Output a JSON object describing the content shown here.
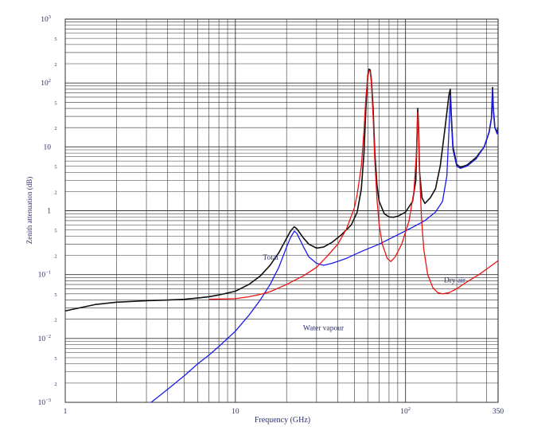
{
  "chart_data": {
    "type": "line",
    "xlabel": "Frequency (GHz)",
    "ylabel": "Zenith attenuation (dB)",
    "xscale": "log",
    "yscale": "log",
    "xlim": [
      1,
      350
    ],
    "ylim": [
      0.001,
      1000
    ],
    "grid": true,
    "x_ticks": [
      {
        "value": 1,
        "label": "1"
      },
      {
        "value": 10,
        "label": "10"
      },
      {
        "value": 100,
        "label": "10",
        "sup": "2"
      },
      {
        "value": 350,
        "label": "350"
      }
    ],
    "y_ticks": [
      {
        "value": 0.001,
        "label": "10",
        "sup": "−3"
      },
      {
        "value": 0.01,
        "label": "10",
        "sup": "−2"
      },
      {
        "value": 0.1,
        "label": "10",
        "sup": "−1"
      },
      {
        "value": 1,
        "label": "1"
      },
      {
        "value": 10,
        "label": "10"
      },
      {
        "value": 100,
        "label": "10",
        "sup": "2"
      },
      {
        "value": 1000,
        "label": "10",
        "sup": "3"
      }
    ],
    "y_minor_labels": [
      "2",
      "5"
    ],
    "series": [
      {
        "name": "Total",
        "color": "#111111",
        "points": [
          [
            1,
            0.027
          ],
          [
            1.5,
            0.034
          ],
          [
            2,
            0.037
          ],
          [
            3,
            0.039
          ],
          [
            4,
            0.04
          ],
          [
            5,
            0.041
          ],
          [
            6,
            0.043
          ],
          [
            7,
            0.045
          ],
          [
            8,
            0.048
          ],
          [
            10,
            0.055
          ],
          [
            12,
            0.07
          ],
          [
            14,
            0.095
          ],
          [
            16,
            0.14
          ],
          [
            18,
            0.22
          ],
          [
            20,
            0.37
          ],
          [
            21,
            0.47
          ],
          [
            22,
            0.55
          ],
          [
            22.2,
            0.56
          ],
          [
            23,
            0.52
          ],
          [
            25,
            0.38
          ],
          [
            27,
            0.3
          ],
          [
            30,
            0.26
          ],
          [
            33,
            0.27
          ],
          [
            37,
            0.32
          ],
          [
            42,
            0.42
          ],
          [
            48,
            0.6
          ],
          [
            52,
            0.95
          ],
          [
            55,
            2.2
          ],
          [
            57,
            8
          ],
          [
            58.5,
            40
          ],
          [
            60,
            130
          ],
          [
            61,
            165
          ],
          [
            62,
            160
          ],
          [
            63,
            110
          ],
          [
            64.5,
            40
          ],
          [
            66,
            8
          ],
          [
            68,
            2.5
          ],
          [
            70,
            1.4
          ],
          [
            75,
            0.9
          ],
          [
            80,
            0.8
          ],
          [
            85,
            0.79
          ],
          [
            90,
            0.82
          ],
          [
            100,
            0.95
          ],
          [
            110,
            1.4
          ],
          [
            115,
            3
          ],
          [
            118,
            40
          ],
          [
            119,
            25
          ],
          [
            121,
            4
          ],
          [
            125,
            1.6
          ],
          [
            130,
            1.3
          ],
          [
            140,
            1.6
          ],
          [
            150,
            2.2
          ],
          [
            160,
            5
          ],
          [
            170,
            18
          ],
          [
            180,
            65
          ],
          [
            183.3,
            80
          ],
          [
            186,
            30
          ],
          [
            190,
            10
          ],
          [
            200,
            5.3
          ],
          [
            210,
            4.8
          ],
          [
            230,
            5.2
          ],
          [
            260,
            6.8
          ],
          [
            290,
            10
          ],
          [
            310,
            17
          ],
          [
            320,
            28
          ],
          [
            325,
            85
          ],
          [
            328,
            40
          ],
          [
            335,
            20
          ],
          [
            345,
            17
          ],
          [
            350,
            20
          ]
        ]
      },
      {
        "name": "Water vapour",
        "color": "#1a1aee",
        "points": [
          [
            3.2,
            0.001
          ],
          [
            4,
            0.0016
          ],
          [
            5,
            0.0026
          ],
          [
            6,
            0.004
          ],
          [
            7,
            0.0055
          ],
          [
            8,
            0.0075
          ],
          [
            10,
            0.013
          ],
          [
            12,
            0.023
          ],
          [
            14,
            0.04
          ],
          [
            16,
            0.07
          ],
          [
            18,
            0.13
          ],
          [
            20,
            0.27
          ],
          [
            21,
            0.37
          ],
          [
            22.2,
            0.48
          ],
          [
            23,
            0.44
          ],
          [
            25,
            0.28
          ],
          [
            27,
            0.19
          ],
          [
            30,
            0.15
          ],
          [
            33,
            0.14
          ],
          [
            37,
            0.15
          ],
          [
            45,
            0.18
          ],
          [
            55,
            0.23
          ],
          [
            70,
            0.3
          ],
          [
            90,
            0.42
          ],
          [
            110,
            0.55
          ],
          [
            130,
            0.7
          ],
          [
            150,
            0.95
          ],
          [
            165,
            1.4
          ],
          [
            175,
            3.5
          ],
          [
            180,
            18
          ],
          [
            183.3,
            65
          ],
          [
            186,
            25
          ],
          [
            190,
            9
          ],
          [
            200,
            5
          ],
          [
            210,
            4.6
          ],
          [
            230,
            5
          ],
          [
            260,
            6.5
          ],
          [
            290,
            10
          ],
          [
            310,
            17
          ],
          [
            320,
            28
          ],
          [
            325,
            80
          ],
          [
            328,
            40
          ],
          [
            335,
            20
          ],
          [
            345,
            16
          ],
          [
            350,
            19
          ]
        ]
      },
      {
        "name": "Dry air",
        "color": "#ee1111",
        "points": [
          [
            7,
            0.041
          ],
          [
            10,
            0.042
          ],
          [
            12,
            0.045
          ],
          [
            14,
            0.049
          ],
          [
            16,
            0.054
          ],
          [
            18,
            0.062
          ],
          [
            20,
            0.07
          ],
          [
            22,
            0.08
          ],
          [
            25,
            0.095
          ],
          [
            30,
            0.13
          ],
          [
            35,
            0.2
          ],
          [
            40,
            0.3
          ],
          [
            45,
            0.52
          ],
          [
            50,
            1.1
          ],
          [
            52,
            1.8
          ],
          [
            55,
            5
          ],
          [
            57,
            18
          ],
          [
            58.5,
            60
          ],
          [
            60,
            120
          ],
          [
            61,
            160
          ],
          [
            62,
            150
          ],
          [
            63,
            100
          ],
          [
            64.5,
            30
          ],
          [
            66,
            6
          ],
          [
            68,
            1.5
          ],
          [
            70,
            0.6
          ],
          [
            73,
            0.3
          ],
          [
            78,
            0.18
          ],
          [
            82,
            0.16
          ],
          [
            87,
            0.19
          ],
          [
            95,
            0.3
          ],
          [
            105,
            0.7
          ],
          [
            112,
            2
          ],
          [
            116,
            8
          ],
          [
            118,
            35
          ],
          [
            119,
            20
          ],
          [
            121,
            4
          ],
          [
            124,
            0.8
          ],
          [
            128,
            0.25
          ],
          [
            135,
            0.1
          ],
          [
            145,
            0.062
          ],
          [
            155,
            0.052
          ],
          [
            165,
            0.05
          ],
          [
            180,
            0.052
          ],
          [
            200,
            0.06
          ],
          [
            230,
            0.077
          ],
          [
            270,
            0.1
          ],
          [
            310,
            0.13
          ],
          [
            350,
            0.165
          ]
        ]
      }
    ],
    "annotations": [
      {
        "text": "Total",
        "x": 14.5,
        "y": 0.17
      },
      {
        "text": "Water vapour",
        "x": 25,
        "y": 0.0135
      },
      {
        "text": "Dry air",
        "x": 168,
        "y": 0.075
      }
    ]
  }
}
